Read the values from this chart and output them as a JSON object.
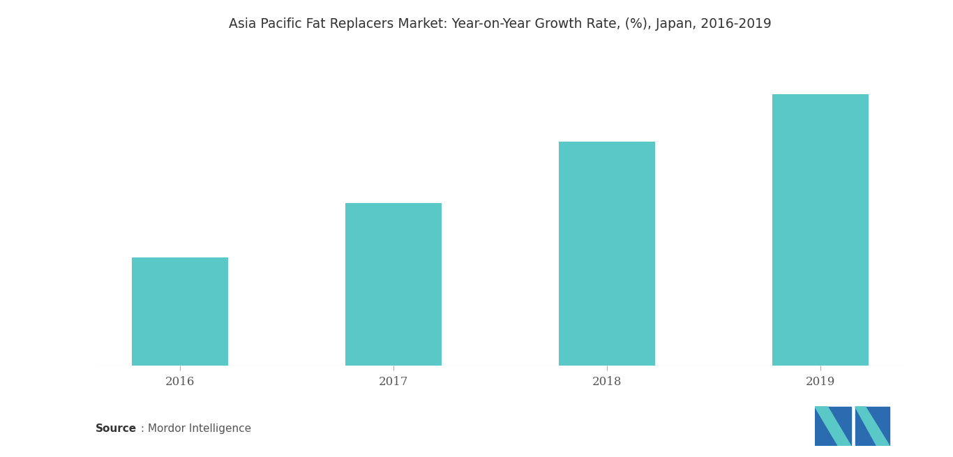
{
  "title": "Asia Pacific Fat Replacers Market: Year-on-Year Growth Rate, (%), Japan, 2016-2019",
  "categories": [
    "2016",
    "2017",
    "2018",
    "2019"
  ],
  "values": [
    3.0,
    4.5,
    6.2,
    7.5
  ],
  "bar_color": "#5BC8C8",
  "background_color": "#ffffff",
  "title_fontsize": 13.5,
  "tick_fontsize": 12,
  "source_bold": "Source",
  "source_normal": " : Mordor Intelligence",
  "bar_width": 0.45,
  "logo_dark_blue": "#2B6CB0",
  "logo_teal": "#5BC8C8"
}
